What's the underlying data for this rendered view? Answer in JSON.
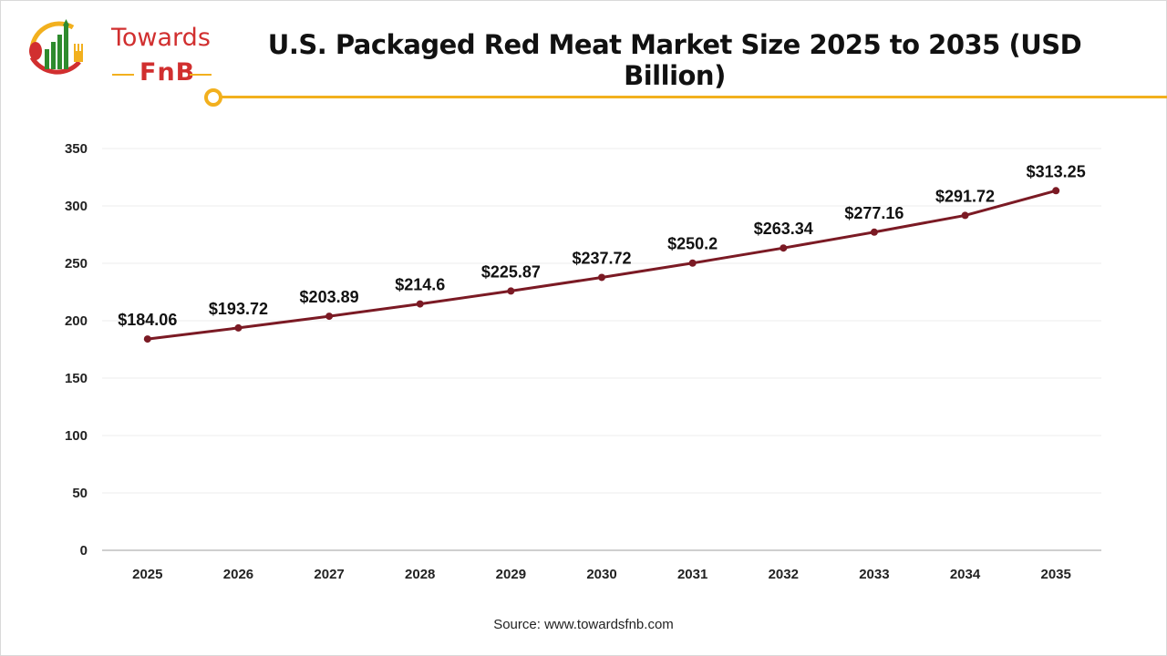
{
  "chart_data": {
    "type": "line",
    "title": "U.S. Packaged Red Meat Market Size 2025 to 2035 (USD Billion)",
    "categories": [
      "2025",
      "2026",
      "2027",
      "2028",
      "2029",
      "2030",
      "2031",
      "2032",
      "2033",
      "2034",
      "2035"
    ],
    "values": [
      184.06,
      193.72,
      203.89,
      214.6,
      225.87,
      237.72,
      250.2,
      263.34,
      277.16,
      291.72,
      313.25
    ],
    "data_labels": [
      "$184.06",
      "$193.72",
      "$203.89",
      "$214.6",
      "$225.87",
      "$237.72",
      "$250.2",
      "$263.34",
      "$277.16",
      "$291.72",
      "$313.25"
    ],
    "ylim": [
      0,
      350
    ],
    "yticks": [
      0,
      50,
      100,
      150,
      200,
      250,
      300,
      350
    ],
    "grid": true,
    "line_color": "#7b1a24",
    "xlabel": "",
    "ylabel": ""
  },
  "logo": {
    "line1": "Towards",
    "line2": "FnB"
  },
  "colors": {
    "accent": "#f2b01e",
    "logo_red": "#d12f2f",
    "logo_green": "#2e8b2e"
  },
  "source": "Source: www.towardsfnb.com"
}
